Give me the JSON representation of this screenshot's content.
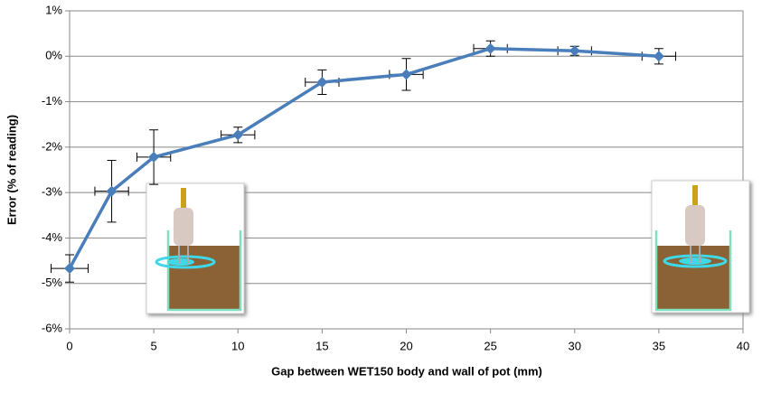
{
  "chart_data": {
    "type": "line",
    "xlabel": "Gap between WET150 body and wall of pot (mm)",
    "ylabel": "Error (% of reading)",
    "x": [
      0,
      2.5,
      5,
      10,
      15,
      20,
      25,
      30,
      35
    ],
    "series": [
      {
        "color": "#4a7ebb",
        "values": [
          -4.67,
          -2.97,
          -2.22,
          -1.73,
          -0.57,
          -0.4,
          0.17,
          0.12,
          0
        ],
        "y_errors": [
          0.3,
          0.68,
          0.6,
          0.17,
          0.27,
          0.35,
          0.17,
          0.1,
          0.17
        ],
        "x_errors": [
          1.1,
          1,
          1,
          1,
          1,
          1,
          1,
          1,
          1
        ]
      }
    ],
    "xlim": [
      0,
      40
    ],
    "xticks": [
      0,
      5,
      10,
      15,
      20,
      25,
      30,
      35,
      40
    ],
    "ylim": [
      -6,
      1
    ],
    "yticks": [
      {
        "value": -6,
        "label": "-6%"
      },
      {
        "value": -5,
        "label": "-5%"
      },
      {
        "value": -4,
        "label": "-4%"
      },
      {
        "value": -3,
        "label": "-3%"
      },
      {
        "value": -2,
        "label": "-2%"
      },
      {
        "value": -1,
        "label": "-1%"
      },
      {
        "value": 0,
        "label": "0%"
      },
      {
        "value": 1,
        "label": "1%"
      }
    ],
    "grid": true
  }
}
